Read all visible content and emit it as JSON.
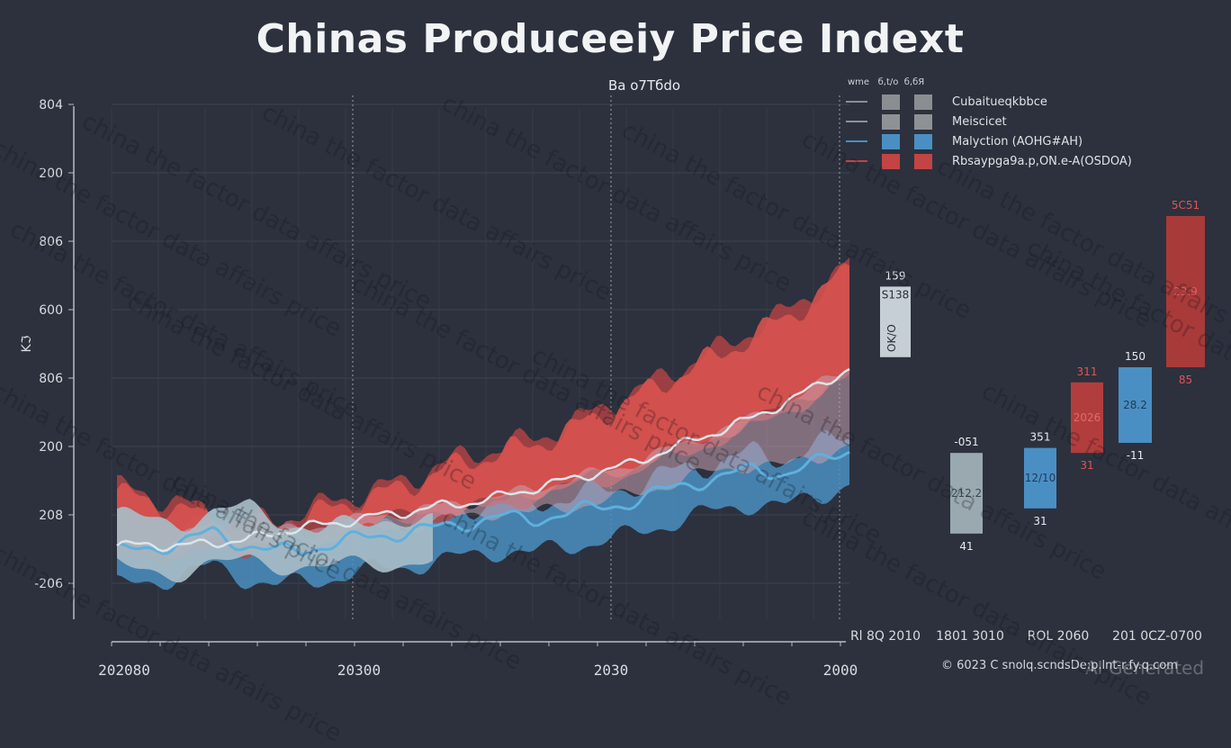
{
  "chart_data": {
    "type": "area",
    "title": "Chinas Produceeiy Price Indext",
    "subtitle": "Ba o7Tбdo",
    "xlabel": "",
    "ylabel": "Kℑ",
    "y_ticks": [
      "-206",
      "208",
      "200",
      "806",
      "600",
      "806",
      "200",
      "804"
    ],
    "x_ticks": [
      "202080",
      "20300",
      "2030",
      "2000"
    ],
    "grid": true,
    "legend_placement": "top-right",
    "legend": {
      "header": [
        "wme",
        "б,t/o",
        "б,бЯ"
      ],
      "entries": [
        {
          "label": "Cubaitueqkbbce",
          "color": "#8a8d92"
        },
        {
          "label": "Meiscicet",
          "color": "#8e9196"
        },
        {
          "label": "Malyction (AOHG#AH)",
          "color": "#4a8fc4"
        },
        {
          "label": "Rbsaypga9a.p,ON.e-A(OSDOA)",
          "color": "#c24444"
        }
      ]
    },
    "series": [
      {
        "name": "gray-band",
        "color": "#a7bcc6",
        "upper": [
          0.3,
          0.28,
          0.35,
          0.22,
          0.3,
          0.25,
          0.2,
          0.22,
          0.25,
          0.33,
          0.28,
          0.3
        ],
        "lower": [
          0.05,
          0.02,
          0.08,
          0.04,
          0.06,
          0.1,
          0.1,
          0.12,
          0.14,
          0.18,
          0.2,
          0.22
        ]
      },
      {
        "name": "red-band",
        "color": "#d9534f",
        "values": [
          0.42,
          0.38,
          0.34,
          0.28,
          0.24,
          0.26,
          0.3,
          0.36,
          0.4,
          0.45,
          0.52,
          0.58,
          0.62,
          0.66,
          0.72,
          0.8,
          0.88,
          0.96,
          1.05,
          1.12,
          1.22,
          1.3,
          1.42,
          1.55
        ]
      },
      {
        "name": "blue-band",
        "color": "#4a9ac8",
        "values": [
          0.2,
          0.22,
          0.25,
          0.3,
          0.24,
          0.2,
          0.22,
          0.25,
          0.28,
          0.3,
          0.32,
          0.35,
          0.38,
          0.36,
          0.4,
          0.42,
          0.45,
          0.5,
          0.55,
          0.58,
          0.62,
          0.6,
          0.65,
          0.72
        ]
      },
      {
        "name": "mean-line",
        "color": "#d9e6ec",
        "values": [
          0.15,
          0.16,
          0.15,
          0.17,
          0.18,
          0.22,
          0.25,
          0.27,
          0.3,
          0.32,
          0.35,
          0.37,
          0.4,
          0.44,
          0.48,
          0.52,
          0.56,
          0.62,
          0.68,
          0.74,
          0.8,
          0.88,
          0.96,
          1.05
        ]
      }
    ],
    "bars": [
      {
        "color": "#c6cfd4",
        "top_label": "159",
        "mid_label": "S138",
        "side_label": "OK/O",
        "bottom_label": "",
        "top": 0.66,
        "bottom": 0.52,
        "label_color": "#2b2f38"
      },
      {
        "color": "#9aa9b0",
        "top_label": "-051",
        "mid_label": "212.2",
        "bottom_label": "41",
        "top": 0.33,
        "bottom": 0.17,
        "label_color": "#3a4a55"
      },
      {
        "color": "#4a8fc4",
        "top_label": "351",
        "mid_label": "12/10",
        "bottom_label": "31",
        "top": 0.34,
        "bottom": 0.22,
        "label_color": "#1f3a55"
      },
      {
        "color": "#b23d3d",
        "top_label": "311",
        "mid_label": "2026",
        "bottom_label": "31",
        "top": 0.47,
        "bottom": 0.33,
        "label_color": "#e36a6a",
        "top_color": "#e05555"
      },
      {
        "color": "#4a8fc4",
        "top_label": "150",
        "mid_label": "28.2",
        "bottom_label": "-11",
        "top": 0.5,
        "bottom": 0.35,
        "label_color": "#1f3a55"
      },
      {
        "color": "#a83a3a",
        "top_label": "5C51",
        "mid_label": "23.9",
        "bottom_label": "85",
        "top": 0.8,
        "bottom": 0.5,
        "label_color": "#e06060",
        "top_color": "#e05555"
      }
    ],
    "bar_x_labels": [
      "Rl 8Q 2010",
      "1801 3010",
      "ROL 2060",
      "201 0CZ-0700"
    ]
  },
  "footer": {
    "credit": "© 6023 C snolq.scndsDe:p.lnt-r.fy.q.com",
    "ai_badge": "AI Generated"
  },
  "watermark": "china the factor data affairs price"
}
